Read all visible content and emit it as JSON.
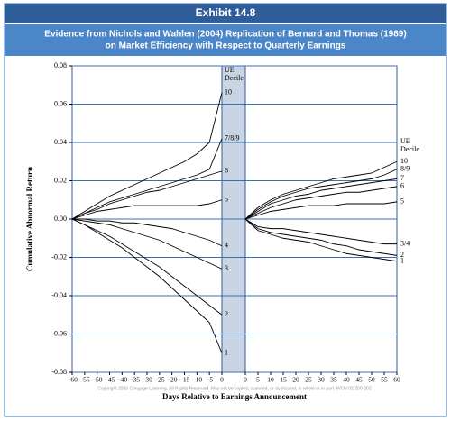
{
  "header": "Exhibit 14.8",
  "chart_data": {
    "type": "line",
    "title": [
      "Evidence from Nichols and Wahlen (2004) Replication of Bernard and Thomas (1989)",
      "on Market Efficiency with Respect to Quarterly Earnings"
    ],
    "ylabel": "Cumulative Abnormal Return",
    "xlabel": "Days Relative to Earnings Announcement",
    "footnote": "Copyright 2010 Cengage Learning. All Rights Reserved. May not be copied, scanned, or duplicated, in whole or in part. WCN 02-200-202",
    "ylim": [
      -0.08,
      0.08
    ],
    "yticks": [
      0.08,
      0.06,
      0.04,
      0.02,
      {
        "value": 0,
        "label": "0.00"
      },
      -0.02,
      -0.04,
      -0.06,
      -0.08
    ],
    "grid": true,
    "color": "#000000",
    "panels": [
      {
        "legend_title": [
          "UE",
          "Decile"
        ],
        "xlim": [
          -60,
          0
        ],
        "xticks": [
          {
            "value": -60,
            "label": "−60"
          },
          {
            "value": -55,
            "label": "−55"
          },
          {
            "value": -50,
            "label": "−50"
          },
          {
            "value": -45,
            "label": "−45"
          },
          {
            "value": -40,
            "label": "−40"
          },
          {
            "value": -35,
            "label": "−35"
          },
          {
            "value": -30,
            "label": "−30"
          },
          {
            "value": -25,
            "label": "−25"
          },
          {
            "value": -20,
            "label": "−20"
          },
          {
            "value": -15,
            "label": "−15"
          },
          {
            "value": -10,
            "label": "−10"
          },
          {
            "value": -5,
            "label": "−5"
          },
          0
        ],
        "x": [
          -60,
          -55,
          -50,
          -45,
          -40,
          -35,
          -30,
          -25,
          -20,
          -15,
          -10,
          -5,
          0
        ],
        "series": [
          {
            "name": "10",
            "values": [
              0,
              0.004,
              0.008,
              0.012,
              0.015,
              0.018,
              0.021,
              0.024,
              0.027,
              0.03,
              0.034,
              0.04,
              0.066
            ]
          },
          {
            "name": "7/8/9",
            "values": [
              0,
              0.003,
              0.006,
              0.009,
              0.011,
              0.013,
              0.015,
              0.017,
              0.019,
              0.021,
              0.023,
              0.026,
              0.042
            ]
          },
          {
            "name": "6",
            "values": [
              0,
              0.003,
              0.005,
              0.008,
              0.01,
              0.012,
              0.014,
              0.015,
              0.017,
              0.019,
              0.021,
              0.023,
              0.025
            ]
          },
          {
            "name": "5",
            "values": [
              0,
              0.002,
              0.004,
              0.005,
              0.006,
              0.007,
              0.007,
              0.007,
              0.007,
              0.007,
              0.007,
              0.008,
              0.01
            ]
          },
          {
            "name": "4",
            "values": [
              0,
              0.0,
              -0.001,
              -0.001,
              -0.002,
              -0.002,
              -0.003,
              -0.004,
              -0.005,
              -0.007,
              -0.009,
              -0.011,
              -0.014
            ]
          },
          {
            "name": "3",
            "values": [
              0,
              -0.001,
              -0.002,
              -0.003,
              -0.005,
              -0.007,
              -0.009,
              -0.011,
              -0.014,
              -0.017,
              -0.02,
              -0.023,
              -0.026
            ]
          },
          {
            "name": "2",
            "values": [
              0,
              -0.003,
              -0.006,
              -0.009,
              -0.013,
              -0.017,
              -0.021,
              -0.025,
              -0.03,
              -0.035,
              -0.04,
              -0.045,
              -0.05
            ]
          },
          {
            "name": "1",
            "values": [
              0,
              -0.003,
              -0.007,
              -0.011,
              -0.015,
              -0.02,
              -0.025,
              -0.03,
              -0.036,
              -0.042,
              -0.048,
              -0.054,
              -0.07
            ]
          }
        ]
      },
      {
        "legend_title": [
          "UE",
          "Decile"
        ],
        "xlim": [
          0,
          60
        ],
        "xticks": [
          0,
          5,
          10,
          15,
          20,
          25,
          30,
          35,
          40,
          45,
          50,
          55,
          60
        ],
        "x": [
          0,
          5,
          10,
          15,
          20,
          25,
          30,
          35,
          40,
          45,
          50,
          55,
          60
        ],
        "series": [
          {
            "name": "10",
            "values": [
              0,
              0.006,
              0.01,
              0.013,
              0.015,
              0.017,
              0.019,
              0.021,
              0.022,
              0.023,
              0.024,
              0.027,
              0.03
            ]
          },
          {
            "name": "8/9",
            "values": [
              0,
              0.005,
              0.009,
              0.012,
              0.014,
              0.016,
              0.017,
              0.018,
              0.019,
              0.02,
              0.021,
              0.023,
              0.026
            ]
          },
          {
            "name": "7",
            "values": [
              0,
              0.004,
              0.008,
              0.01,
              0.012,
              0.013,
              0.015,
              0.016,
              0.017,
              0.018,
              0.019,
              0.02,
              0.021
            ]
          },
          {
            "name": "6",
            "values": [
              0,
              0.003,
              0.006,
              0.008,
              0.01,
              0.011,
              0.012,
              0.013,
              0.014,
              0.014,
              0.015,
              0.016,
              0.017
            ]
          },
          {
            "name": "5",
            "values": [
              0,
              0.002,
              0.004,
              0.005,
              0.006,
              0.007,
              0.007,
              0.007,
              0.008,
              0.008,
              0.008,
              0.008,
              0.009
            ]
          },
          {
            "name": "3/4",
            "values": [
              0,
              -0.004,
              -0.005,
              -0.005,
              -0.006,
              -0.007,
              -0.008,
              -0.009,
              -0.01,
              -0.011,
              -0.012,
              -0.013,
              -0.013
            ]
          },
          {
            "name": "2",
            "values": [
              0,
              -0.005,
              -0.007,
              -0.008,
              -0.009,
              -0.01,
              -0.011,
              -0.013,
              -0.014,
              -0.016,
              -0.017,
              -0.018,
              -0.019
            ]
          },
          {
            "name": "1",
            "values": [
              0,
              -0.006,
              -0.008,
              -0.01,
              -0.011,
              -0.012,
              -0.014,
              -0.016,
              -0.018,
              -0.019,
              -0.02,
              -0.021,
              -0.022
            ]
          }
        ]
      }
    ]
  }
}
